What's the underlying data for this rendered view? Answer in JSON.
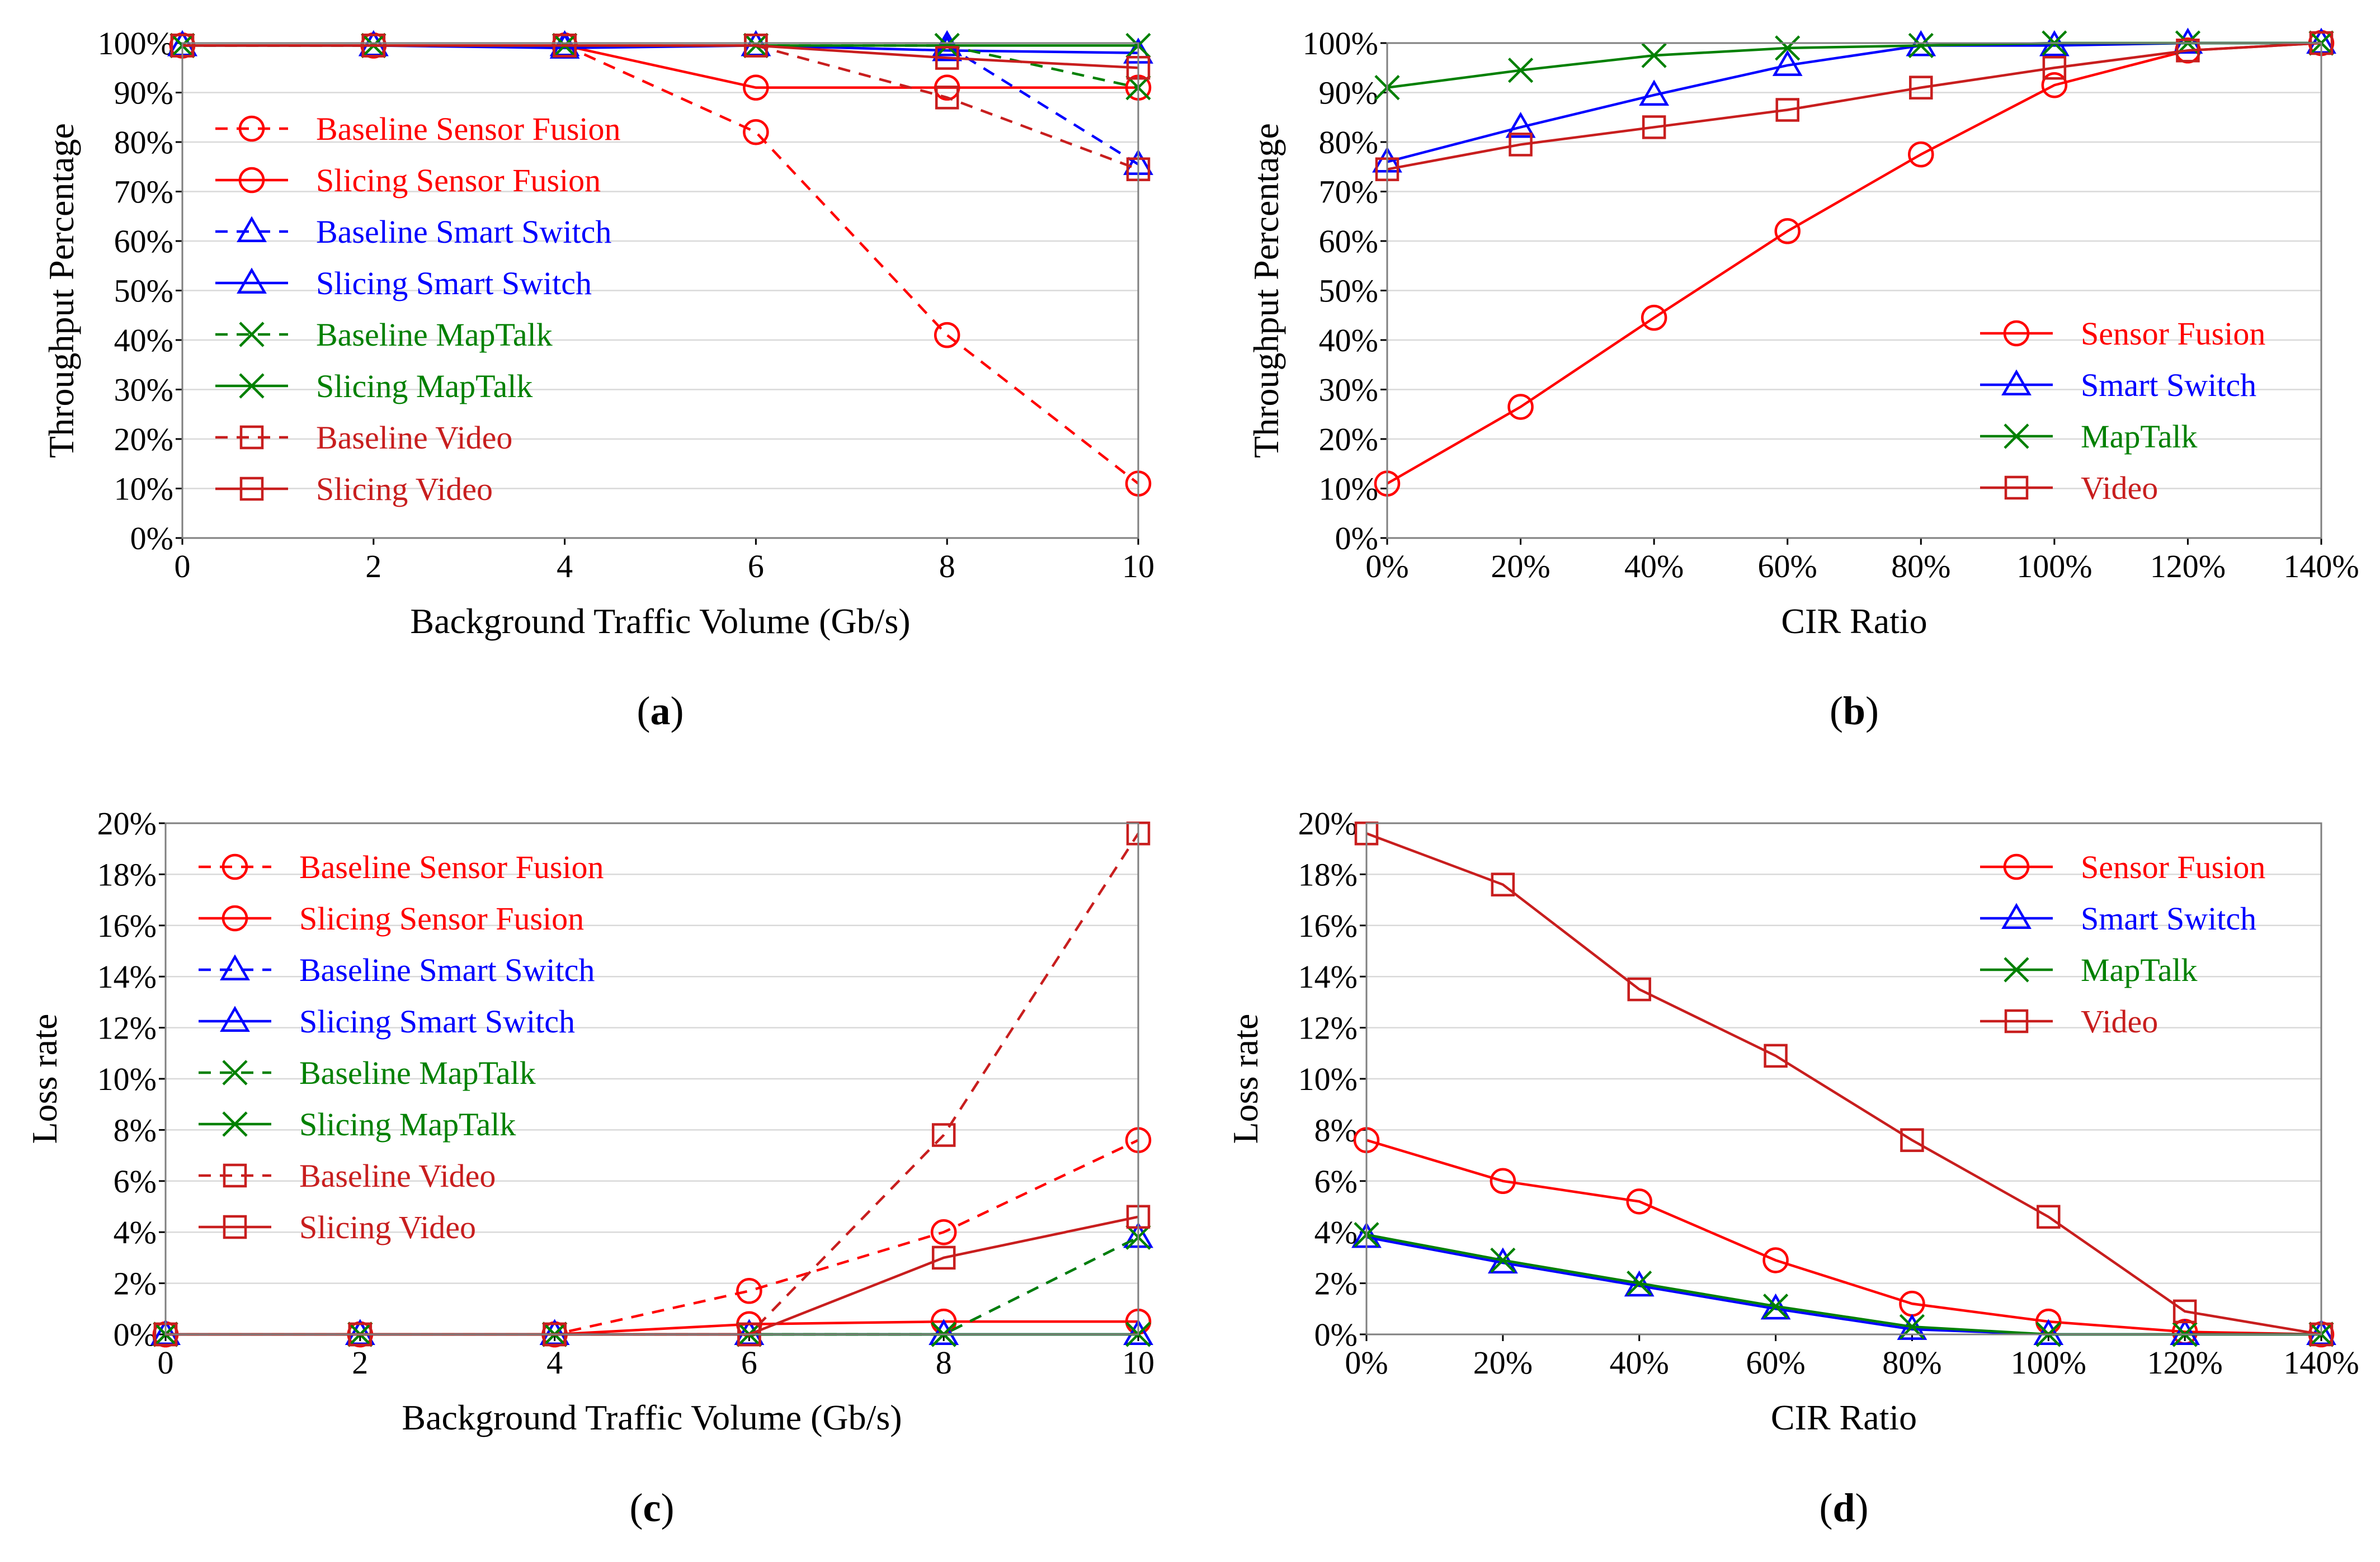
{
  "colors": {
    "red": "#ff0000",
    "darkred": "#c81e1e",
    "blue": "#0000ff",
    "green": "#008000",
    "grid": "#d9d9d9",
    "axis": "#000000"
  },
  "chart_data": [
    {
      "type": "line",
      "panel_label": "a",
      "xlabel": "Background Traffic Volume (Gb/s)",
      "ylabel": "Throughput Percentage",
      "x": [
        0,
        2,
        4,
        6,
        8,
        10
      ],
      "x_tick_labels": [
        "0",
        "2",
        "4",
        "6",
        "8",
        "10"
      ],
      "ylim": [
        0,
        100
      ],
      "y_ticks": [
        0,
        10,
        20,
        30,
        40,
        50,
        60,
        70,
        80,
        90,
        100
      ],
      "y_tick_labels": [
        "0%",
        "10%",
        "20%",
        "30%",
        "40%",
        "50%",
        "60%",
        "70%",
        "80%",
        "90%",
        "100%"
      ],
      "grid": true,
      "legend_position": "left",
      "series": [
        {
          "name": "Baseline Sensor Fusion",
          "color": "red",
          "dash": true,
          "marker": "circle",
          "values": [
            99.5,
            99.5,
            99.5,
            82,
            41,
            11
          ]
        },
        {
          "name": "Slicing Sensor Fusion",
          "color": "red",
          "dash": false,
          "marker": "circle",
          "values": [
            99.5,
            99.5,
            99.5,
            91,
            91,
            91
          ]
        },
        {
          "name": "Baseline Smart Switch",
          "color": "blue",
          "dash": true,
          "marker": "triangle",
          "values": [
            99.5,
            99.5,
            99.5,
            99.5,
            99.5,
            75.5
          ]
        },
        {
          "name": "Slicing Smart Switch",
          "color": "blue",
          "dash": false,
          "marker": "triangle",
          "values": [
            99.5,
            99.5,
            99,
            99.5,
            98.5,
            98
          ]
        },
        {
          "name": "Baseline MapTalk",
          "color": "green",
          "dash": true,
          "marker": "x",
          "values": [
            99.5,
            99.5,
            99.5,
            99.5,
            99.5,
            91
          ]
        },
        {
          "name": "Slicing MapTalk",
          "color": "green",
          "dash": false,
          "marker": "x",
          "values": [
            99.5,
            99.5,
            99.5,
            99.5,
            99.5,
            99.5
          ]
        },
        {
          "name": "Baseline Video",
          "color": "darkred",
          "dash": true,
          "marker": "square",
          "values": [
            99.5,
            99.5,
            99.5,
            99.5,
            89,
            74.5
          ]
        },
        {
          "name": "Slicing Video",
          "color": "darkred",
          "dash": false,
          "marker": "square",
          "values": [
            99.5,
            99.5,
            99.5,
            99.5,
            97,
            95
          ]
        }
      ]
    },
    {
      "type": "line",
      "panel_label": "b",
      "xlabel": "CIR Ratio",
      "ylabel": "Throughput Percentage",
      "x": [
        0,
        20,
        40,
        60,
        80,
        100,
        120,
        140
      ],
      "x_tick_labels": [
        "0%",
        "20%",
        "40%",
        "60%",
        "80%",
        "100%",
        "120%",
        "140%"
      ],
      "ylim": [
        0,
        100
      ],
      "y_ticks": [
        0,
        10,
        20,
        30,
        40,
        50,
        60,
        70,
        80,
        90,
        100
      ],
      "y_tick_labels": [
        "0%",
        "10%",
        "20%",
        "30%",
        "40%",
        "50%",
        "60%",
        "70%",
        "80%",
        "90%",
        "100%"
      ],
      "grid": true,
      "legend_position": "right",
      "series": [
        {
          "name": "Sensor Fusion",
          "color": "red",
          "dash": false,
          "marker": "circle",
          "values": [
            11,
            26.5,
            44.5,
            62,
            77.5,
            91.5,
            98.5,
            100
          ]
        },
        {
          "name": "Smart Switch",
          "color": "blue",
          "dash": false,
          "marker": "triangle",
          "values": [
            76,
            83,
            89.5,
            95.5,
            99.5,
            99.5,
            100,
            100
          ]
        },
        {
          "name": "MapTalk",
          "color": "green",
          "dash": false,
          "marker": "x",
          "values": [
            91,
            94.5,
            97.5,
            99,
            99.5,
            100,
            100,
            100
          ]
        },
        {
          "name": "Video",
          "color": "darkred",
          "dash": false,
          "marker": "square",
          "values": [
            74.5,
            79.5,
            83,
            86.5,
            91,
            95,
            98.5,
            100
          ]
        }
      ]
    },
    {
      "type": "line",
      "panel_label": "c",
      "xlabel": "Background Traffic Volume (Gb/s)",
      "ylabel": "Loss rate",
      "x": [
        0,
        2,
        4,
        6,
        8,
        10
      ],
      "x_tick_labels": [
        "0",
        "2",
        "4",
        "6",
        "8",
        "10"
      ],
      "ylim": [
        0,
        20
      ],
      "y_ticks": [
        0,
        2,
        4,
        6,
        8,
        10,
        12,
        14,
        16,
        18,
        20
      ],
      "y_tick_labels": [
        "0%",
        "2%",
        "4%",
        "6%",
        "8%",
        "10%",
        "12%",
        "14%",
        "16%",
        "18%",
        "20%"
      ],
      "grid": true,
      "legend_position": "left",
      "series": [
        {
          "name": "Baseline Sensor Fusion",
          "color": "red",
          "dash": true,
          "marker": "circle",
          "values": [
            0,
            0,
            0,
            1.7,
            4.0,
            7.6
          ]
        },
        {
          "name": "Slicing Sensor Fusion",
          "color": "red",
          "dash": false,
          "marker": "circle",
          "values": [
            0,
            0,
            0,
            0.4,
            0.5,
            0.5
          ]
        },
        {
          "name": "Baseline Smart Switch",
          "color": "blue",
          "dash": true,
          "marker": "triangle",
          "values": [
            0,
            0,
            0,
            0,
            0,
            3.8
          ]
        },
        {
          "name": "Slicing Smart Switch",
          "color": "blue",
          "dash": false,
          "marker": "triangle",
          "values": [
            0,
            0,
            0,
            0,
            0,
            0
          ]
        },
        {
          "name": "Baseline MapTalk",
          "color": "green",
          "dash": true,
          "marker": "x",
          "values": [
            0,
            0,
            0,
            0,
            0,
            3.8
          ]
        },
        {
          "name": "Slicing MapTalk",
          "color": "green",
          "dash": false,
          "marker": "x",
          "values": [
            0,
            0,
            0,
            0,
            0,
            0
          ]
        },
        {
          "name": "Baseline Video",
          "color": "darkred",
          "dash": true,
          "marker": "square",
          "values": [
            0,
            0,
            0,
            0,
            7.8,
            19.6
          ]
        },
        {
          "name": "Slicing Video",
          "color": "darkred",
          "dash": false,
          "marker": "square",
          "values": [
            0,
            0,
            0,
            0,
            3.0,
            4.6
          ]
        }
      ]
    },
    {
      "type": "line",
      "panel_label": "d",
      "xlabel": "CIR Ratio",
      "ylabel": "Loss rate",
      "x": [
        0,
        20,
        40,
        60,
        80,
        100,
        120,
        140
      ],
      "x_tick_labels": [
        "0%",
        "20%",
        "40%",
        "60%",
        "80%",
        "100%",
        "120%",
        "140%"
      ],
      "ylim": [
        0,
        20
      ],
      "y_ticks": [
        0,
        2,
        4,
        6,
        8,
        10,
        12,
        14,
        16,
        18,
        20
      ],
      "y_tick_labels": [
        "0%",
        "2%",
        "4%",
        "6%",
        "8%",
        "10%",
        "12%",
        "14%",
        "16%",
        "18%",
        "20%"
      ],
      "grid": true,
      "legend_position": "top-right",
      "series": [
        {
          "name": "Sensor Fusion",
          "color": "red",
          "dash": false,
          "marker": "circle",
          "values": [
            7.6,
            6.0,
            5.2,
            2.9,
            1.2,
            0.5,
            0.1,
            0
          ]
        },
        {
          "name": "Smart Switch",
          "color": "blue",
          "dash": false,
          "marker": "triangle",
          "values": [
            3.8,
            2.8,
            1.9,
            1.0,
            0.2,
            0,
            0,
            0
          ]
        },
        {
          "name": "MapTalk",
          "color": "green",
          "dash": false,
          "marker": "x",
          "values": [
            3.9,
            2.9,
            2.0,
            1.1,
            0.3,
            0,
            0,
            0
          ]
        },
        {
          "name": "Video",
          "color": "darkred",
          "dash": false,
          "marker": "square",
          "values": [
            19.6,
            17.6,
            13.5,
            10.9,
            7.6,
            4.6,
            0.9,
            0
          ]
        }
      ]
    }
  ]
}
